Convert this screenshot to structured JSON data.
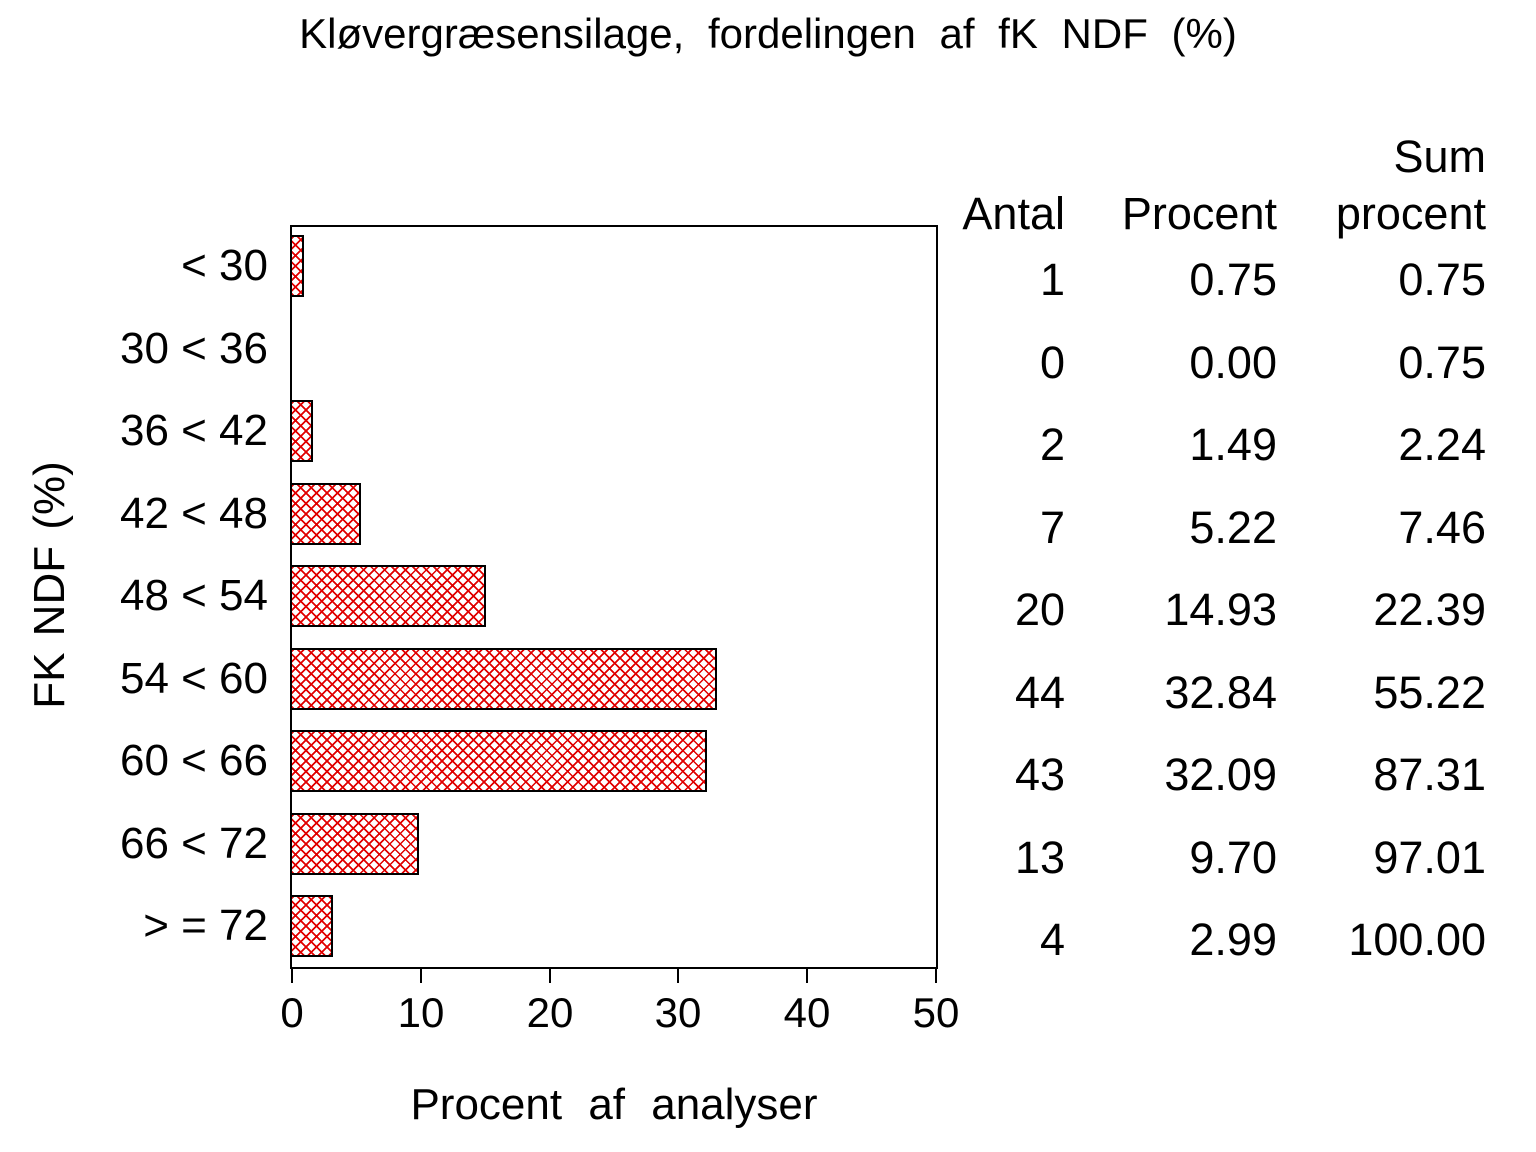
{
  "title": "Kløvergræsensilage, fordelingen af fK NDF (%)",
  "chart_data": {
    "type": "bar",
    "orientation": "horizontal",
    "title": "Kløvergræsensilage, fordelingen af fK NDF (%)",
    "xlabel": "Procent af analyser",
    "ylabel": "FK NDF (%)",
    "xlim": [
      0,
      50
    ],
    "x_ticks": [
      0,
      10,
      20,
      30,
      40,
      50
    ],
    "grid": false,
    "bar_fill": "crosshatch",
    "bar_color": "#e00000",
    "bar_border_color": "#000000",
    "categories": [
      "< 30",
      "30 < 36",
      "36 < 42",
      "42 < 48",
      "48 < 54",
      "54 < 60",
      "60 < 66",
      "66 < 72",
      "> = 72"
    ],
    "values": [
      0.75,
      0.0,
      1.49,
      5.22,
      14.93,
      32.84,
      32.09,
      9.7,
      2.99
    ],
    "series": [
      {
        "name": "Antal",
        "values": [
          1,
          0,
          2,
          7,
          20,
          44,
          43,
          13,
          4
        ]
      },
      {
        "name": "Procent",
        "values": [
          0.75,
          0.0,
          1.49,
          5.22,
          14.93,
          32.84,
          32.09,
          9.7,
          2.99
        ]
      },
      {
        "name": "Sum procent",
        "values": [
          0.75,
          0.75,
          2.24,
          7.46,
          22.39,
          55.22,
          87.31,
          97.01,
          100.0
        ]
      }
    ]
  },
  "table": {
    "headers": {
      "antal": "Antal",
      "procent": "Procent",
      "sum_line1": "Sum",
      "sum_line2": "procent"
    },
    "rows": [
      {
        "antal": "1",
        "procent": "0.75",
        "sum": "0.75"
      },
      {
        "antal": "0",
        "procent": "0.00",
        "sum": "0.75"
      },
      {
        "antal": "2",
        "procent": "1.49",
        "sum": "2.24"
      },
      {
        "antal": "7",
        "procent": "5.22",
        "sum": "7.46"
      },
      {
        "antal": "20",
        "procent": "14.93",
        "sum": "22.39"
      },
      {
        "antal": "44",
        "procent": "32.84",
        "sum": "55.22"
      },
      {
        "antal": "43",
        "procent": "32.09",
        "sum": "87.31"
      },
      {
        "antal": "13",
        "procent": "9.70",
        "sum": "97.01"
      },
      {
        "antal": "4",
        "procent": "2.99",
        "sum": "100.00"
      }
    ]
  },
  "x_tick_labels": [
    "0",
    "10",
    "20",
    "30",
    "40",
    "50"
  ]
}
